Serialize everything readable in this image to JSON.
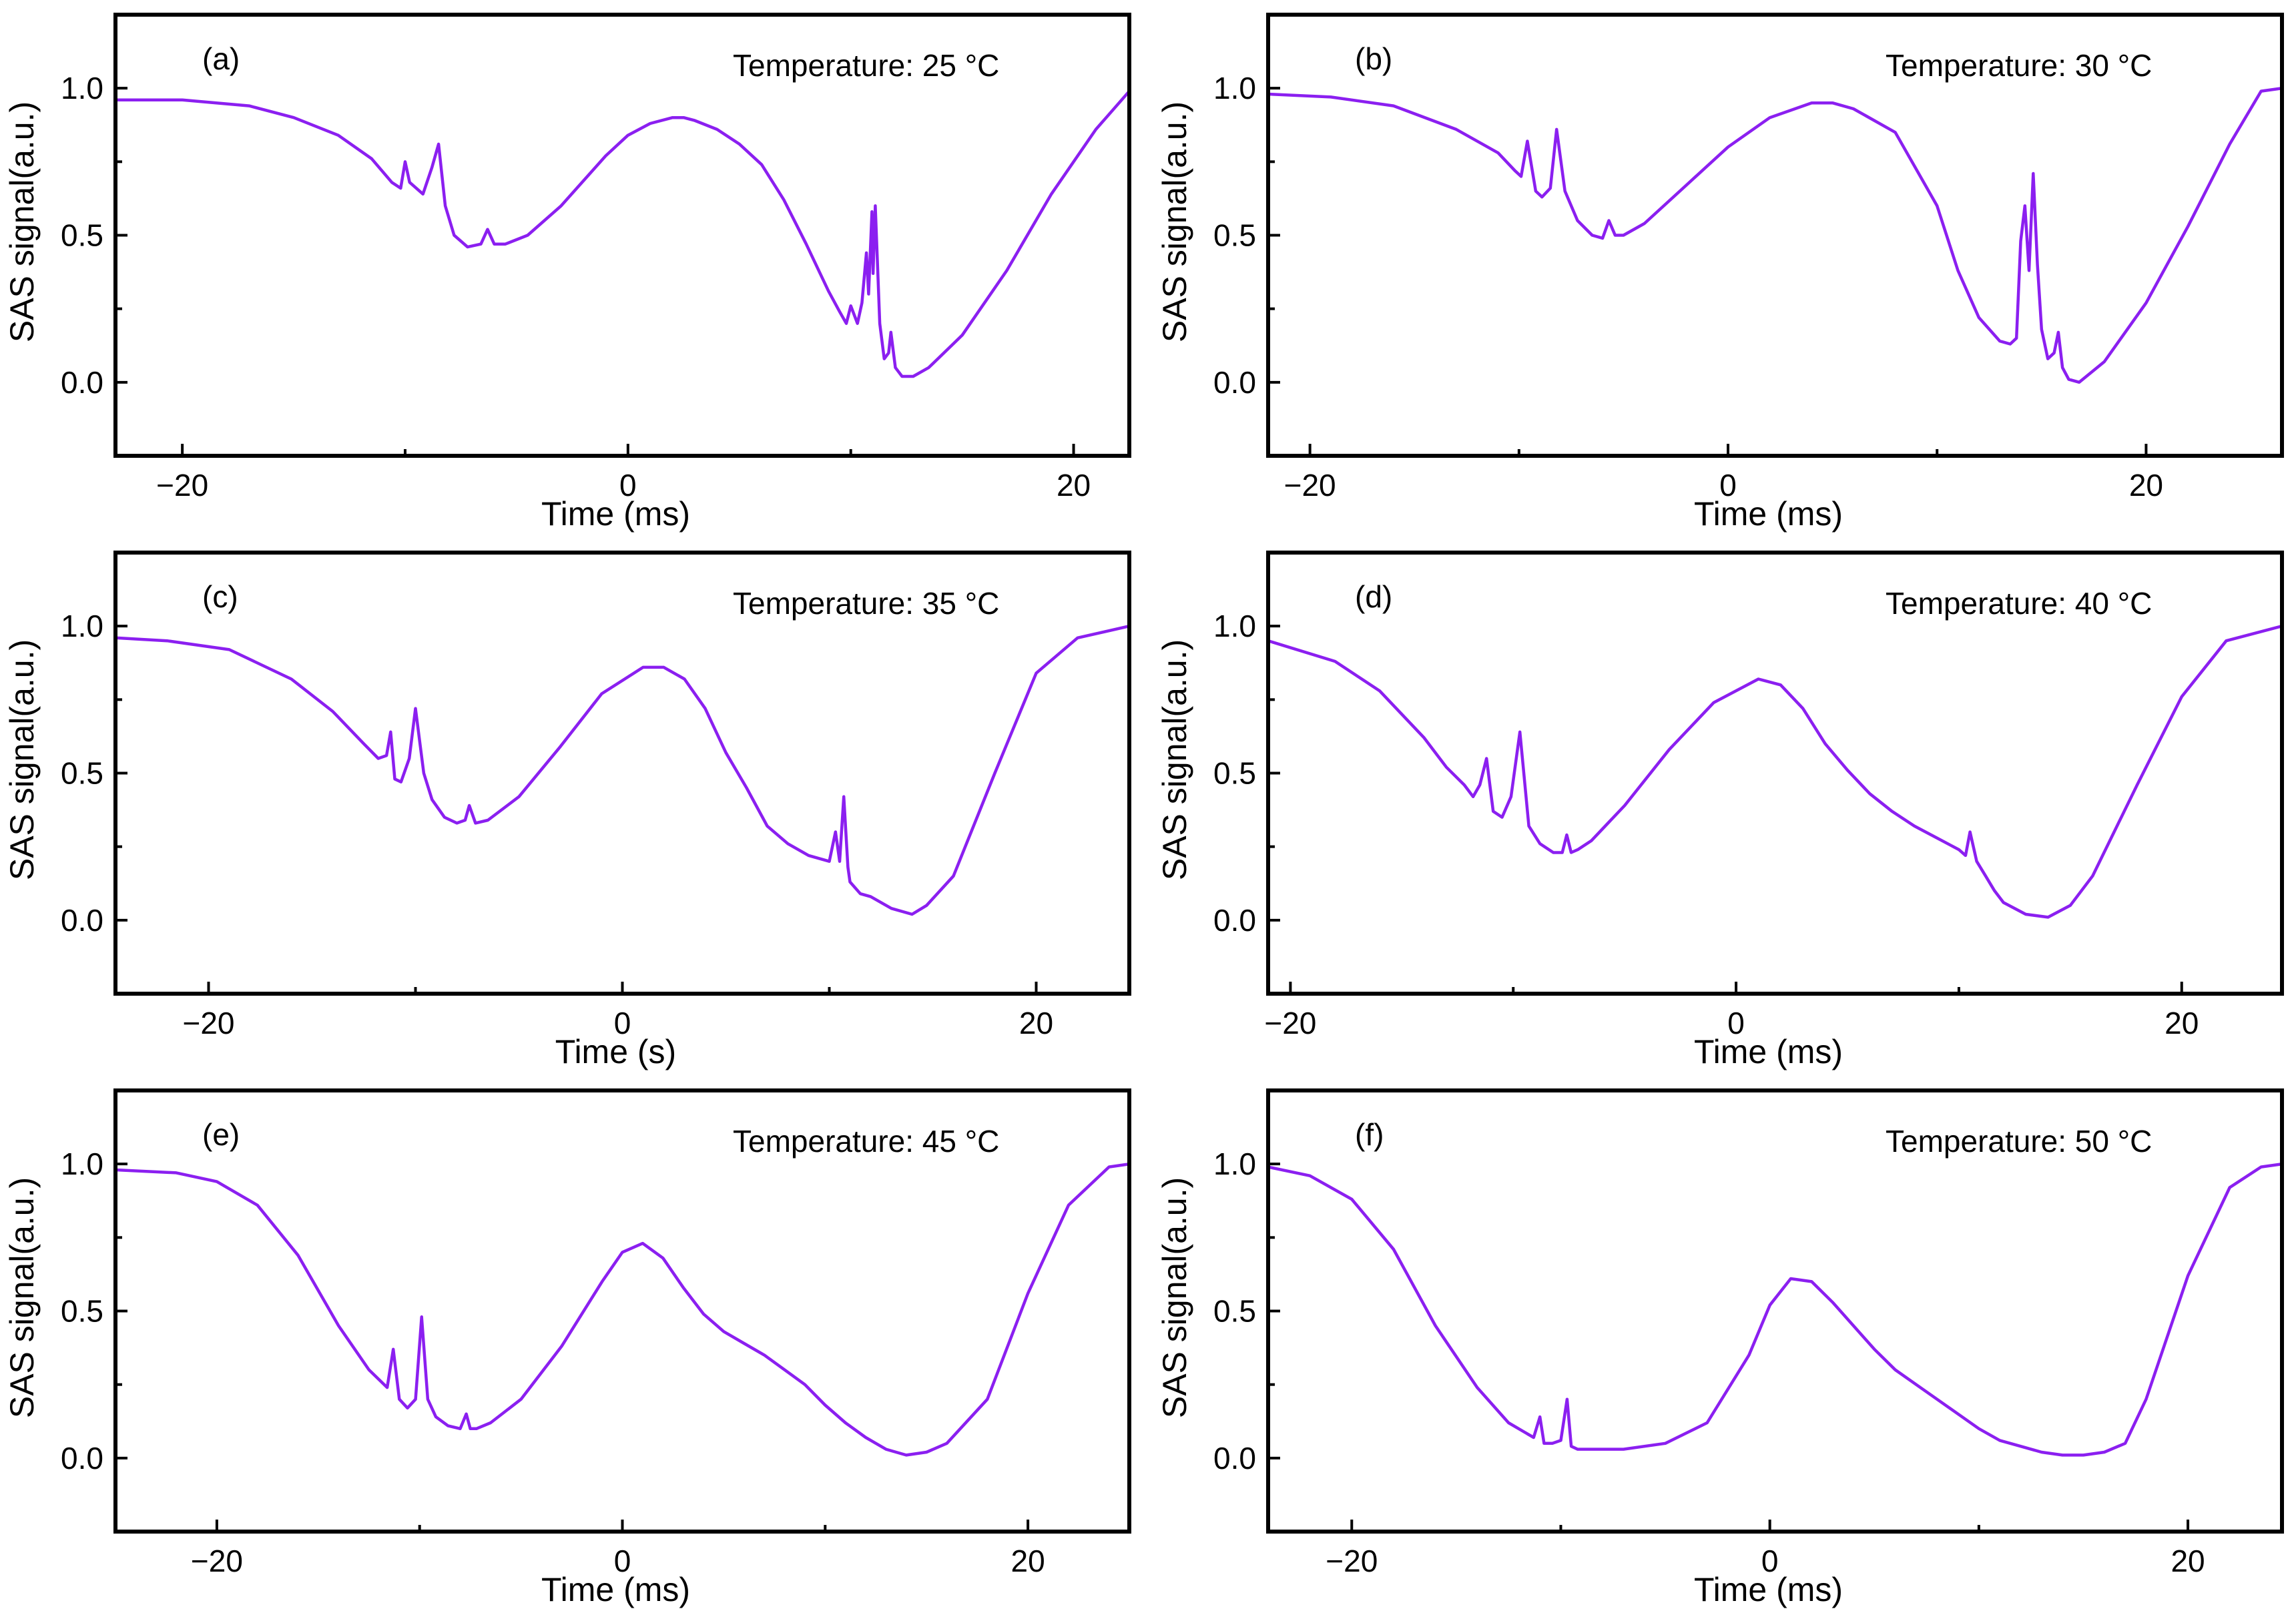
{
  "figure": {
    "line_color": "#8B1FF0"
  },
  "chart_data": [
    {
      "type": "line",
      "panel_label": "(a)",
      "annotation": "Temperature: 25 °C",
      "xlabel": "Time (ms)",
      "ylabel": "SAS signal(a.u.)",
      "xlim": [
        -23,
        22.5
      ],
      "ylim": [
        -0.25,
        1.25
      ],
      "xticks": [
        -20,
        0,
        20
      ],
      "xtick_labels": [
        "−20",
        "0",
        "20"
      ],
      "yticks": [
        0.0,
        0.5,
        1.0
      ],
      "ytick_labels": [
        "0.0",
        "0.5",
        "1.0"
      ],
      "series": [
        {
          "name": "SAS signal",
          "x": [
            -23,
            -20,
            -17,
            -15,
            -13,
            -11.5,
            -10.6,
            -10.2,
            -10,
            -9.8,
            -9.2,
            -8.8,
            -8.5,
            -8.2,
            -7.8,
            -7.2,
            -6.6,
            -6.3,
            -6.0,
            -5.5,
            -4.5,
            -3,
            -1,
            0,
            1,
            2,
            2.5,
            3,
            4,
            5,
            6,
            7,
            8,
            9,
            9.5,
            9.8,
            10.0,
            10.3,
            10.5,
            10.7,
            10.8,
            10.95,
            11.0,
            11.1,
            11.3,
            11.5,
            11.7,
            11.8,
            12.0,
            12.3,
            12.8,
            13.5,
            15,
            17,
            19,
            21,
            22.5
          ],
          "y": [
            0.96,
            0.96,
            0.94,
            0.9,
            0.84,
            0.76,
            0.68,
            0.66,
            0.75,
            0.68,
            0.64,
            0.73,
            0.81,
            0.6,
            0.5,
            0.46,
            0.47,
            0.52,
            0.47,
            0.47,
            0.5,
            0.6,
            0.77,
            0.84,
            0.88,
            0.9,
            0.9,
            0.89,
            0.86,
            0.81,
            0.74,
            0.62,
            0.47,
            0.31,
            0.24,
            0.2,
            0.26,
            0.2,
            0.27,
            0.44,
            0.3,
            0.58,
            0.37,
            0.6,
            0.2,
            0.08,
            0.1,
            0.17,
            0.05,
            0.02,
            0.02,
            0.05,
            0.16,
            0.38,
            0.64,
            0.86,
            0.99
          ]
        }
      ]
    },
    {
      "type": "line",
      "panel_label": "(b)",
      "annotation": "Temperature: 30 °C",
      "xlabel": "Time (ms)",
      "ylabel": "SAS signal(a.u.)",
      "xlim": [
        -22,
        26.5
      ],
      "ylim": [
        -0.25,
        1.25
      ],
      "xticks": [
        -20,
        0,
        20
      ],
      "xtick_labels": [
        "−20",
        "0",
        "20"
      ],
      "yticks": [
        0.0,
        0.5,
        1.0
      ],
      "ytick_labels": [
        "0.0",
        "0.5",
        "1.0"
      ],
      "series": [
        {
          "name": "SAS signal",
          "x": [
            -22,
            -19,
            -16,
            -13,
            -11,
            -10.2,
            -9.9,
            -9.6,
            -9.2,
            -8.9,
            -8.5,
            -8.2,
            -7.8,
            -7.2,
            -6.5,
            -6.0,
            -5.7,
            -5.4,
            -5.0,
            -4,
            -2,
            0,
            2,
            4,
            5,
            6,
            8,
            10,
            11,
            12,
            13,
            13.5,
            13.8,
            14.0,
            14.2,
            14.4,
            14.6,
            14.8,
            15.0,
            15.3,
            15.6,
            15.8,
            16.0,
            16.3,
            16.8,
            18,
            20,
            22,
            24,
            25.5,
            26.5
          ],
          "y": [
            0.98,
            0.97,
            0.94,
            0.86,
            0.78,
            0.72,
            0.7,
            0.82,
            0.65,
            0.63,
            0.66,
            0.86,
            0.65,
            0.55,
            0.5,
            0.49,
            0.55,
            0.5,
            0.5,
            0.54,
            0.67,
            0.8,
            0.9,
            0.95,
            0.95,
            0.93,
            0.85,
            0.6,
            0.38,
            0.22,
            0.14,
            0.13,
            0.15,
            0.48,
            0.6,
            0.38,
            0.71,
            0.4,
            0.18,
            0.08,
            0.1,
            0.17,
            0.05,
            0.01,
            0.0,
            0.07,
            0.27,
            0.53,
            0.81,
            0.99,
            1.0
          ]
        }
      ]
    },
    {
      "type": "line",
      "panel_label": "(c)",
      "annotation": "Temperature: 35 °C",
      "xlabel": "Time (s)",
      "ylabel": "SAS signal(a.u.)",
      "xlim": [
        -24.5,
        24.5
      ],
      "ylim": [
        -0.25,
        1.25
      ],
      "xticks": [
        -20,
        0,
        20
      ],
      "xtick_labels": [
        "−20",
        "0",
        "20"
      ],
      "yticks": [
        0.0,
        0.5,
        1.0
      ],
      "ytick_labels": [
        "0.0",
        "0.5",
        "1.0"
      ],
      "series": [
        {
          "name": "SAS signal",
          "x": [
            -24.5,
            -22,
            -19,
            -16,
            -14,
            -12.5,
            -11.8,
            -11.4,
            -11.2,
            -11.0,
            -10.7,
            -10.3,
            -10.0,
            -9.6,
            -9.2,
            -8.6,
            -8.0,
            -7.6,
            -7.4,
            -7.1,
            -6.5,
            -5,
            -3,
            -1,
            1,
            2,
            3,
            4,
            5,
            6,
            7,
            8,
            9,
            10,
            10.3,
            10.5,
            10.7,
            10.9,
            11.0,
            11.5,
            12,
            13,
            14,
            14.7,
            16,
            18,
            20,
            22,
            24.5
          ],
          "y": [
            0.96,
            0.95,
            0.92,
            0.82,
            0.71,
            0.6,
            0.55,
            0.56,
            0.64,
            0.48,
            0.47,
            0.55,
            0.72,
            0.5,
            0.41,
            0.35,
            0.33,
            0.34,
            0.39,
            0.33,
            0.34,
            0.42,
            0.59,
            0.77,
            0.86,
            0.86,
            0.82,
            0.72,
            0.57,
            0.45,
            0.32,
            0.26,
            0.22,
            0.2,
            0.3,
            0.2,
            0.42,
            0.18,
            0.13,
            0.09,
            0.08,
            0.04,
            0.02,
            0.05,
            0.15,
            0.5,
            0.84,
            0.96,
            1.0
          ]
        }
      ]
    },
    {
      "type": "line",
      "panel_label": "(d)",
      "annotation": "Temperature: 40 °C",
      "xlabel": "Time (ms)",
      "ylabel": "SAS signal(a.u.)",
      "xlim": [
        -21,
        24.5
      ],
      "ylim": [
        -0.25,
        1.25
      ],
      "xticks": [
        -20,
        0,
        20
      ],
      "xtick_labels": [
        "−20",
        "0",
        "20"
      ],
      "yticks": [
        0.0,
        0.5,
        1.0
      ],
      "ytick_labels": [
        "0.0",
        "0.5",
        "1.0"
      ],
      "series": [
        {
          "name": "SAS signal",
          "x": [
            -21,
            -18,
            -16,
            -14,
            -13,
            -12.2,
            -11.8,
            -11.5,
            -11.2,
            -10.9,
            -10.5,
            -10.1,
            -9.7,
            -9.3,
            -8.8,
            -8.2,
            -7.8,
            -7.6,
            -7.4,
            -7.1,
            -6.5,
            -5,
            -3,
            -1,
            1,
            2,
            3,
            4,
            5,
            6,
            7,
            8,
            9,
            10,
            10.3,
            10.5,
            10.8,
            11.2,
            11.6,
            12,
            13,
            14,
            15,
            16,
            18,
            20,
            22,
            24.5
          ],
          "y": [
            0.95,
            0.88,
            0.78,
            0.62,
            0.52,
            0.46,
            0.42,
            0.46,
            0.55,
            0.37,
            0.35,
            0.42,
            0.64,
            0.32,
            0.26,
            0.23,
            0.23,
            0.29,
            0.23,
            0.24,
            0.27,
            0.39,
            0.58,
            0.74,
            0.82,
            0.8,
            0.72,
            0.6,
            0.51,
            0.43,
            0.37,
            0.32,
            0.28,
            0.24,
            0.22,
            0.3,
            0.2,
            0.15,
            0.1,
            0.06,
            0.02,
            0.01,
            0.05,
            0.15,
            0.46,
            0.76,
            0.95,
            1.0
          ]
        }
      ]
    },
    {
      "type": "line",
      "panel_label": "(e)",
      "annotation": "Temperature: 45 °C",
      "xlabel": "Time (ms)",
      "ylabel": "SAS signal(a.u.)",
      "xlim": [
        -25,
        25
      ],
      "ylim": [
        -0.25,
        1.25
      ],
      "xticks": [
        -20,
        0,
        20
      ],
      "xtick_labels": [
        "−20",
        "0",
        "20"
      ],
      "yticks": [
        0.0,
        0.5,
        1.0
      ],
      "ytick_labels": [
        "0.0",
        "0.5",
        "1.0"
      ],
      "series": [
        {
          "name": "SAS signal",
          "x": [
            -25,
            -22,
            -20,
            -18,
            -16,
            -14,
            -12.5,
            -11.6,
            -11.3,
            -11.0,
            -10.6,
            -10.2,
            -9.9,
            -9.6,
            -9.2,
            -8.6,
            -8.0,
            -7.7,
            -7.5,
            -7.2,
            -6.5,
            -5,
            -3,
            -1,
            0,
            1,
            2,
            3,
            4,
            5,
            6,
            7,
            8,
            9,
            10,
            11,
            12,
            13,
            14,
            15,
            16,
            18,
            20,
            22,
            24,
            25
          ],
          "y": [
            0.98,
            0.97,
            0.94,
            0.86,
            0.69,
            0.45,
            0.3,
            0.24,
            0.37,
            0.2,
            0.17,
            0.2,
            0.48,
            0.2,
            0.14,
            0.11,
            0.1,
            0.15,
            0.1,
            0.1,
            0.12,
            0.2,
            0.38,
            0.6,
            0.7,
            0.73,
            0.68,
            0.58,
            0.49,
            0.43,
            0.39,
            0.35,
            0.3,
            0.25,
            0.18,
            0.12,
            0.07,
            0.03,
            0.01,
            0.02,
            0.05,
            0.2,
            0.56,
            0.86,
            0.99,
            1.0
          ]
        }
      ]
    },
    {
      "type": "line",
      "panel_label": "(f)",
      "annotation": "Temperature: 50 °C",
      "xlabel": "Time (ms)",
      "ylabel": "SAS signal(a.u.)",
      "xlim": [
        -24,
        24.5
      ],
      "ylim": [
        -0.25,
        1.25
      ],
      "xticks": [
        -20,
        0,
        20
      ],
      "xtick_labels": [
        "−20",
        "0",
        "20"
      ],
      "yticks": [
        0.0,
        0.5,
        1.0
      ],
      "ytick_labels": [
        "0.0",
        "0.5",
        "1.0"
      ],
      "series": [
        {
          "name": "SAS signal",
          "x": [
            -24,
            -22,
            -20,
            -18,
            -16,
            -14,
            -12.5,
            -11.3,
            -11.0,
            -10.8,
            -10.4,
            -10.0,
            -9.7,
            -9.5,
            -9.2,
            -8.5,
            -7,
            -5,
            -3,
            -1,
            0,
            1,
            2,
            3,
            4,
            5,
            6,
            7,
            8,
            9,
            10,
            11,
            12,
            13,
            14,
            15,
            16,
            17,
            18,
            20,
            22,
            23.5,
            24.5
          ],
          "y": [
            0.99,
            0.96,
            0.88,
            0.71,
            0.45,
            0.24,
            0.12,
            0.07,
            0.14,
            0.05,
            0.05,
            0.06,
            0.2,
            0.04,
            0.03,
            0.03,
            0.03,
            0.05,
            0.12,
            0.35,
            0.52,
            0.61,
            0.6,
            0.53,
            0.45,
            0.37,
            0.3,
            0.25,
            0.2,
            0.15,
            0.1,
            0.06,
            0.04,
            0.02,
            0.01,
            0.01,
            0.02,
            0.05,
            0.2,
            0.62,
            0.92,
            0.99,
            1.0
          ]
        }
      ]
    }
  ]
}
